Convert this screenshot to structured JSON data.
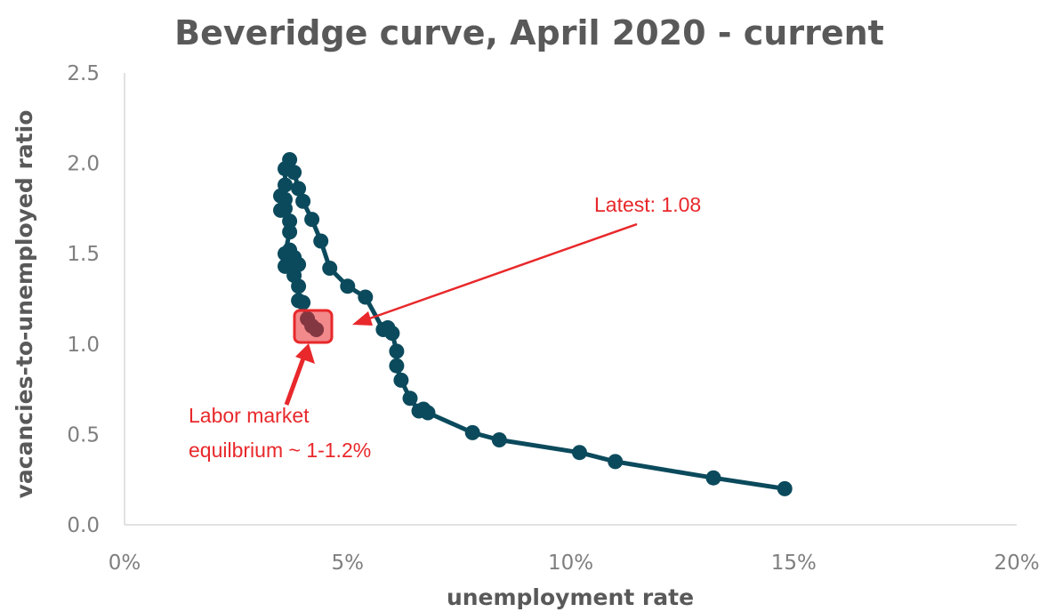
{
  "chart_data": {
    "type": "scatter",
    "title": "Beveridge curve, April 2020 - current",
    "xlabel": "unemployment rate",
    "ylabel": "vacancies-to-unemployed ratio",
    "xlim": [
      0,
      20
    ],
    "ylim": [
      0,
      2.5
    ],
    "x_ticks": [
      "0%",
      "5%",
      "10%",
      "15%",
      "20%"
    ],
    "y_ticks": [
      "0.0",
      "0.5",
      "1.0",
      "1.5",
      "2.0",
      "2.5"
    ],
    "grid": false,
    "legend": "none",
    "series": [
      {
        "color": "#0b4a5c",
        "x": [
          14.8,
          13.2,
          11.0,
          10.2,
          8.4,
          7.8,
          6.8,
          6.7,
          6.6,
          6.4,
          6.2,
          6.1,
          6.1,
          6.0,
          5.9,
          5.8,
          5.4,
          5.0,
          4.6,
          4.4,
          4.2,
          4.0,
          3.9,
          3.8,
          3.7,
          3.6,
          3.6,
          3.6,
          3.5,
          3.5,
          3.6,
          3.7,
          3.7,
          3.6,
          3.6,
          3.7,
          3.8,
          3.8,
          3.9,
          3.9,
          3.9,
          4.0,
          4.1,
          4.2,
          4.3
        ],
        "y": [
          0.2,
          0.26,
          0.35,
          0.4,
          0.47,
          0.51,
          0.62,
          0.64,
          0.63,
          0.7,
          0.8,
          0.88,
          0.96,
          1.06,
          1.09,
          1.08,
          1.26,
          1.32,
          1.42,
          1.57,
          1.69,
          1.79,
          1.86,
          1.95,
          2.02,
          1.97,
          1.88,
          1.8,
          1.74,
          1.82,
          1.75,
          1.68,
          1.62,
          1.5,
          1.43,
          1.52,
          1.48,
          1.38,
          1.44,
          1.32,
          1.24,
          1.23,
          1.14,
          1.1,
          1.08
        ]
      }
    ],
    "annotations": {
      "latest": "Latest: 1.08",
      "equilibrium_line1": "Labor market",
      "equilibrium_line2": "equilbrium ~ 1-1.2%",
      "annotation_color": "#e8282b"
    }
  }
}
